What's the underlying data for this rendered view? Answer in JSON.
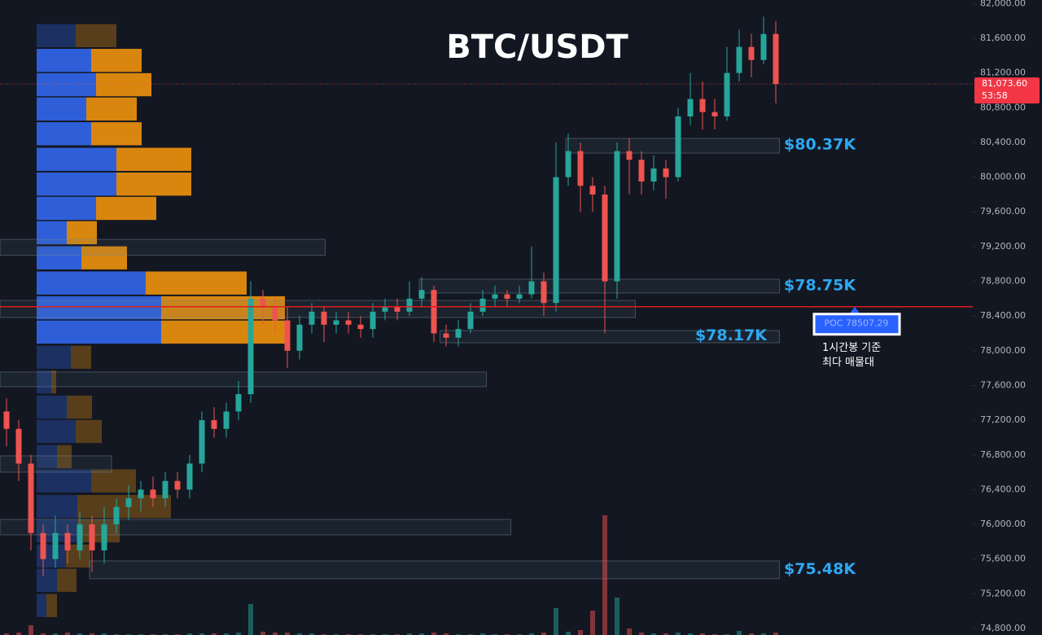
{
  "chart_data": {
    "type": "candlestick",
    "title": "BTC/USDT",
    "up_color": "#26a69a",
    "down_color": "#ef5350",
    "ylim": [
      74725,
      82041
    ],
    "yticks": [
      {
        "value": 74800,
        "label": "74,800.00"
      },
      {
        "value": 75200,
        "label": "75,200.00"
      },
      {
        "value": 75600,
        "label": "75,600.00"
      },
      {
        "value": 76000,
        "label": "76,000.00"
      },
      {
        "value": 76400,
        "label": "76,400.00"
      },
      {
        "value": 76800,
        "label": "76,800.00"
      },
      {
        "value": 77200,
        "label": "77,200.00"
      },
      {
        "value": 77600,
        "label": "77,600.00"
      },
      {
        "value": 78000,
        "label": "78,000.00"
      },
      {
        "value": 78400,
        "label": "78,400.00"
      },
      {
        "value": 78800,
        "label": "78,800.00"
      },
      {
        "value": 79200,
        "label": "79,200.00"
      },
      {
        "value": 79600,
        "label": "79,600.00"
      },
      {
        "value": 80000,
        "label": "80,000.00"
      },
      {
        "value": 80400,
        "label": "80,400.00"
      },
      {
        "value": 80800,
        "label": "80,800.00"
      },
      {
        "value": 81200,
        "label": "81,200.00"
      },
      {
        "value": 81600,
        "label": "81,600.00"
      },
      {
        "value": 82000,
        "label": "82,000.00"
      }
    ],
    "grid": false,
    "open": [
      77300,
      77100,
      76700,
      75900,
      75600,
      75900,
      75700,
      76000,
      75700,
      76000,
      76200,
      76300,
      76400,
      76300,
      76500,
      76400,
      76700,
      77200,
      77100,
      77300,
      77500,
      78600,
      78500,
      78350,
      78000,
      78300,
      78450,
      78300,
      78350,
      78300,
      78250,
      78450,
      78500,
      78450,
      78600,
      78700,
      78200,
      78150,
      78250,
      78450,
      78600,
      78650,
      78600,
      78650,
      78800,
      78550,
      80000,
      80300,
      79900,
      79800,
      78800,
      80300,
      80200,
      79950,
      80100,
      80000,
      80700,
      80900,
      80750,
      80700,
      81200,
      81500,
      81350,
      81650
    ],
    "high": [
      77450,
      77200,
      76800,
      76000,
      76100,
      76000,
      76150,
      76100,
      76200,
      76300,
      76450,
      76500,
      76550,
      76600,
      76600,
      76800,
      77300,
      77350,
      77400,
      77650,
      78800,
      78700,
      78600,
      78500,
      78400,
      78550,
      78500,
      78450,
      78450,
      78400,
      78550,
      78600,
      78600,
      78800,
      78850,
      78750,
      78300,
      78350,
      78550,
      78700,
      78750,
      78700,
      78750,
      79200,
      78900,
      80400,
      80500,
      80400,
      80000,
      79900,
      80400,
      80450,
      80300,
      80250,
      80200,
      80800,
      81200,
      81100,
      80900,
      81500,
      81700,
      81650,
      81850,
      81800
    ],
    "low": [
      76900,
      76500,
      75700,
      75400,
      75500,
      75550,
      75600,
      75450,
      75550,
      75900,
      76050,
      76150,
      76200,
      76200,
      76300,
      76300,
      76600,
      77000,
      77000,
      77200,
      77400,
      78300,
      78200,
      77800,
      77900,
      78200,
      78100,
      78200,
      78200,
      78150,
      78150,
      78350,
      78350,
      78400,
      78500,
      78100,
      78050,
      78050,
      78200,
      78400,
      78500,
      78500,
      78550,
      78600,
      78400,
      78450,
      79900,
      79600,
      79600,
      78200,
      78600,
      79800,
      79800,
      79850,
      79750,
      79950,
      80600,
      80550,
      80550,
      80650,
      81100,
      81150,
      81300,
      80850
    ],
    "close": [
      77100,
      76700,
      75900,
      75600,
      75900,
      75700,
      76000,
      75700,
      76000,
      76200,
      76300,
      76400,
      76300,
      76500,
      76400,
      76700,
      77200,
      77100,
      77300,
      77500,
      78600,
      78500,
      78350,
      78000,
      78300,
      78450,
      78300,
      78350,
      78300,
      78250,
      78450,
      78500,
      78450,
      78600,
      78700,
      78200,
      78150,
      78250,
      78450,
      78600,
      78650,
      78600,
      78650,
      78800,
      78550,
      80000,
      80300,
      79900,
      79800,
      78800,
      80300,
      80200,
      79950,
      80100,
      80000,
      80700,
      80900,
      80750,
      80700,
      81200,
      81500,
      81350,
      81650,
      81073.6
    ],
    "volume": [
      2,
      3,
      12,
      2,
      2,
      3,
      2,
      2,
      2,
      1,
      1,
      1,
      1,
      1,
      1,
      2,
      2,
      2,
      2,
      3,
      38,
      4,
      3,
      3,
      2,
      2,
      1,
      1,
      1,
      1,
      1,
      1,
      1,
      2,
      2,
      3,
      2,
      1,
      1,
      2,
      1,
      1,
      1,
      2,
      3,
      33,
      4,
      6,
      30,
      147,
      46,
      8,
      3,
      2,
      2,
      3,
      2,
      2,
      1,
      1,
      5,
      2,
      2,
      3
    ],
    "profile": {
      "buy_color": "#2f5fd8",
      "sell_color": "#d9860f",
      "value_area_high": 81500,
      "value_area_low": 78100,
      "prices": [
        81630,
        81345,
        81065,
        80785,
        80500,
        80205,
        79920,
        79640,
        79360,
        79070,
        78780,
        78495,
        78215,
        77925,
        77640,
        77350,
        77070,
        76780,
        76500,
        76205,
        75925,
        75635,
        75355,
        75065
      ],
      "buy": [
        48,
        67,
        73,
        61,
        67,
        98,
        98,
        73,
        37,
        55,
        134,
        153,
        153,
        42,
        18,
        37,
        48,
        25,
        67,
        50,
        50,
        36,
        25,
        12
      ],
      "sell": [
        50,
        62,
        68,
        62,
        62,
        92,
        92,
        74,
        37,
        56,
        124,
        152,
        152,
        25,
        6,
        31,
        32,
        18,
        55,
        115,
        52,
        30,
        24,
        13
      ]
    },
    "zones": [
      {
        "top": 79283,
        "bottom": 79100,
        "from": -0.53,
        "to": 26.1
      },
      {
        "top": 80446,
        "bottom": 80277,
        "from": 45.8,
        "to": 63.3,
        "value": 80370,
        "label": "$80.37K"
      },
      {
        "top": 78824,
        "bottom": 78665,
        "from": 33.8,
        "to": 63.3,
        "value": 78750,
        "label": "$78.75K"
      },
      {
        "top": 78580,
        "bottom": 78383,
        "from": -0.53,
        "to": 51.5
      },
      {
        "top": 78233,
        "bottom": 78092,
        "from": 35.5,
        "to": 63.3,
        "value": 78170,
        "label": "$78.17K"
      },
      {
        "top": 77755,
        "bottom": 77586,
        "from": -0.53,
        "to": 39.3
      },
      {
        "top": 76789,
        "bottom": 76601,
        "from": -0.53,
        "to": 8.6
      },
      {
        "top": 76057,
        "bottom": 75879,
        "from": -0.53,
        "to": 41.3
      },
      {
        "top": 75579,
        "bottom": 75373,
        "from": 6.8,
        "to": 63.3,
        "value": 75480,
        "label": "$75.48K"
      }
    ],
    "poc": {
      "value": 78507.29,
      "label": "POC  78507.29",
      "note": [
        "1시간봉 기준",
        "최다 매물대"
      ]
    },
    "last_price": {
      "value": 81073.6,
      "label": "81,073.60",
      "countdown": "53:58"
    }
  }
}
